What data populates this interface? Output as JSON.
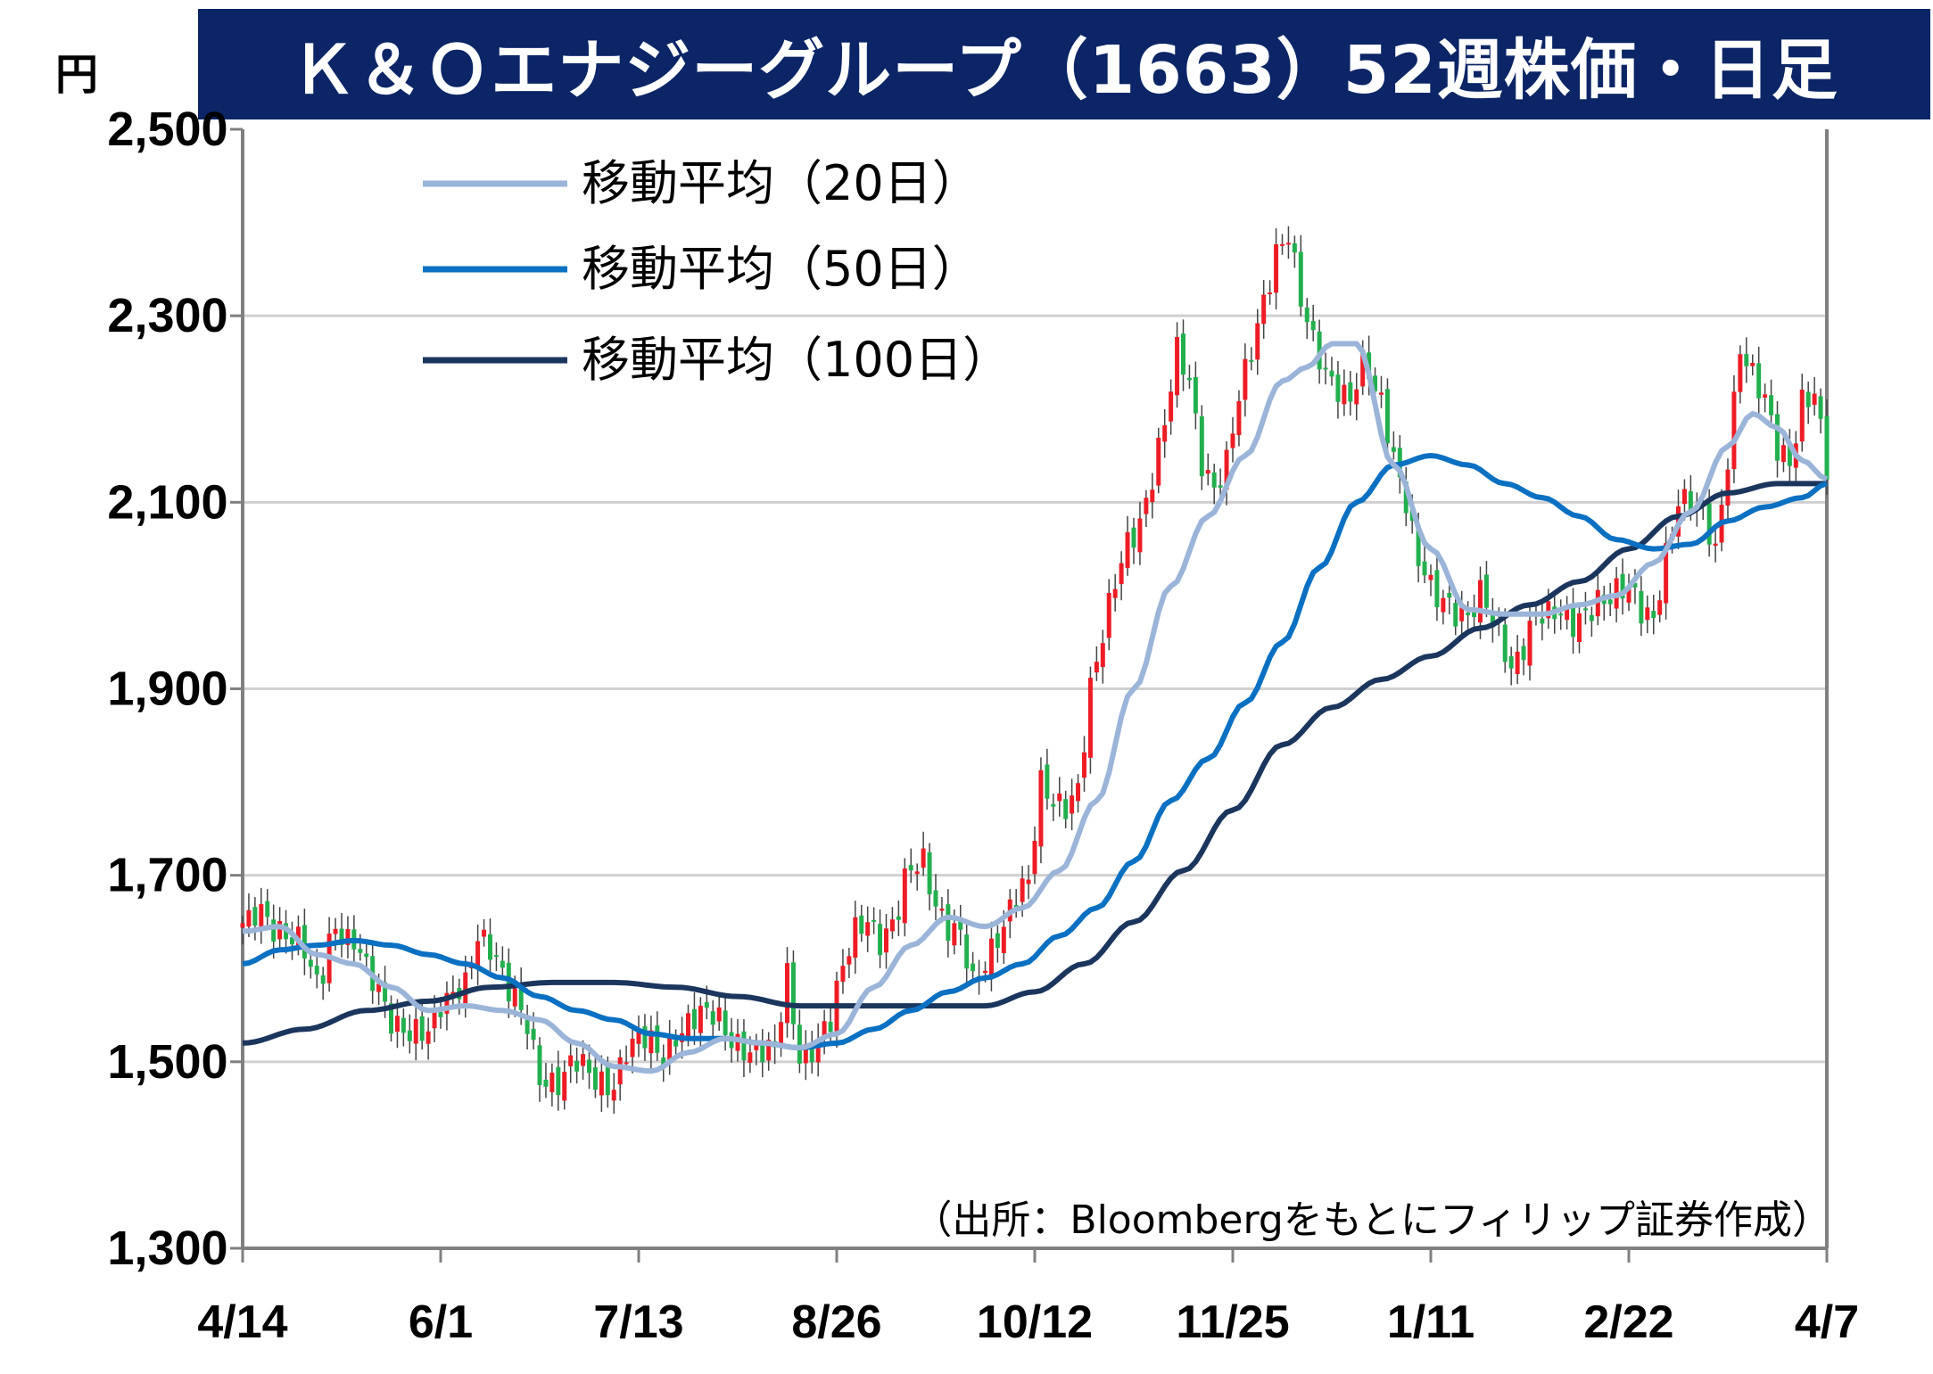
{
  "title": "Ｋ＆Ｏエナジーグループ（1663）52週株価・日足",
  "source_note": "（出所：Bloombergをもとにフィリップ証券作成）",
  "colors": {
    "title_bg": "#0b2566",
    "up": "#ee1c25",
    "down": "#22b04e",
    "ma20": "#9bb5d9",
    "ma50": "#0a70c2",
    "ma100": "#1b365d",
    "grid": "#d0d0d0",
    "axis": "#808080"
  },
  "chart_data": {
    "type": "candlestick",
    "y_unit": "円",
    "ylim": [
      1300,
      2500
    ],
    "yticks": [
      1300,
      1500,
      1700,
      1900,
      2100,
      2300,
      2500
    ],
    "ytick_labels": [
      "1,300",
      "1,500",
      "1,700",
      "1,900",
      "2,100",
      "2,300",
      "2,500"
    ],
    "grid": true,
    "legend_position": "top-left",
    "x_ticks": [
      {
        "label": "4/14",
        "index": 0
      },
      {
        "label": "6/1",
        "index": 32
      },
      {
        "label": "7/13",
        "index": 64
      },
      {
        "label": "8/26",
        "index": 96
      },
      {
        "label": "10/12",
        "index": 128
      },
      {
        "label": "11/25",
        "index": 160
      },
      {
        "label": "1/11",
        "index": 192
      },
      {
        "label": "2/22",
        "index": 224
      },
      {
        "label": "4/7",
        "index": 256
      }
    ],
    "n_days": 257,
    "closes_anchor": [
      [
        0,
        1640
      ],
      [
        3,
        1665
      ],
      [
        6,
        1645
      ],
      [
        9,
        1625
      ],
      [
        12,
        1580
      ],
      [
        15,
        1650
      ],
      [
        18,
        1630
      ],
      [
        21,
        1580
      ],
      [
        24,
        1545
      ],
      [
        27,
        1540
      ],
      [
        30,
        1530
      ],
      [
        33,
        1560
      ],
      [
        36,
        1590
      ],
      [
        38,
        1645
      ],
      [
        40,
        1620
      ],
      [
        43,
        1570
      ],
      [
        46,
        1545
      ],
      [
        48,
        1490
      ],
      [
        51,
        1475
      ],
      [
        54,
        1495
      ],
      [
        57,
        1485
      ],
      [
        60,
        1480
      ],
      [
        62,
        1510
      ],
      [
        65,
        1520
      ],
      [
        68,
        1510
      ],
      [
        70,
        1535
      ],
      [
        73,
        1545
      ],
      [
        76,
        1545
      ],
      [
        80,
        1525
      ],
      [
        83,
        1510
      ],
      [
        86,
        1505
      ],
      [
        88,
        1590
      ],
      [
        90,
        1510
      ],
      [
        92,
        1520
      ],
      [
        95,
        1540
      ],
      [
        97,
        1595
      ],
      [
        99,
        1640
      ],
      [
        101,
        1660
      ],
      [
        103,
        1635
      ],
      [
        105,
        1645
      ],
      [
        108,
        1700
      ],
      [
        110,
        1715
      ],
      [
        112,
        1675
      ],
      [
        114,
        1650
      ],
      [
        116,
        1635
      ],
      [
        118,
        1575
      ],
      [
        120,
        1600
      ],
      [
        122,
        1640
      ],
      [
        125,
        1685
      ],
      [
        127,
        1690
      ],
      [
        129,
        1790
      ],
      [
        131,
        1775
      ],
      [
        133,
        1780
      ],
      [
        135,
        1800
      ],
      [
        137,
        1900
      ],
      [
        139,
        1950
      ],
      [
        141,
        2010
      ],
      [
        143,
        2060
      ],
      [
        145,
        2085
      ],
      [
        147,
        2130
      ],
      [
        149,
        2180
      ],
      [
        151,
        2255
      ],
      [
        153,
        2230
      ],
      [
        155,
        2150
      ],
      [
        157,
        2120
      ],
      [
        159,
        2140
      ],
      [
        161,
        2205
      ],
      [
        163,
        2260
      ],
      [
        165,
        2320
      ],
      [
        167,
        2375
      ],
      [
        169,
        2390
      ],
      [
        171,
        2310
      ],
      [
        173,
        2265
      ],
      [
        175,
        2240
      ],
      [
        177,
        2230
      ],
      [
        179,
        2215
      ],
      [
        181,
        2245
      ],
      [
        184,
        2200
      ],
      [
        186,
        2150
      ],
      [
        188,
        2110
      ],
      [
        190,
        2040
      ],
      [
        193,
        1990
      ],
      [
        196,
        1980
      ],
      [
        198,
        1985
      ],
      [
        200,
        2010
      ],
      [
        203,
        1955
      ],
      [
        205,
        1910
      ],
      [
        207,
        1945
      ],
      [
        209,
        1990
      ],
      [
        212,
        1985
      ],
      [
        215,
        1960
      ],
      [
        217,
        1975
      ],
      [
        219,
        2000
      ],
      [
        222,
        2010
      ],
      [
        224,
        2005
      ],
      [
        226,
        1975
      ],
      [
        228,
        1970
      ],
      [
        230,
        2050
      ],
      [
        232,
        2110
      ],
      [
        234,
        2100
      ],
      [
        236,
        2080
      ],
      [
        238,
        2040
      ],
      [
        240,
        2150
      ],
      [
        242,
        2275
      ],
      [
        244,
        2240
      ],
      [
        246,
        2205
      ],
      [
        248,
        2150
      ],
      [
        250,
        2140
      ],
      [
        252,
        2215
      ],
      [
        254,
        2225
      ],
      [
        256,
        2135
      ]
    ],
    "ma20_anchor": [
      [
        0,
        1640
      ],
      [
        6,
        1645
      ],
      [
        12,
        1615
      ],
      [
        18,
        1605
      ],
      [
        24,
        1580
      ],
      [
        30,
        1555
      ],
      [
        36,
        1560
      ],
      [
        42,
        1555
      ],
      [
        48,
        1545
      ],
      [
        54,
        1520
      ],
      [
        60,
        1495
      ],
      [
        66,
        1490
      ],
      [
        72,
        1510
      ],
      [
        78,
        1525
      ],
      [
        84,
        1520
      ],
      [
        90,
        1515
      ],
      [
        96,
        1530
      ],
      [
        102,
        1580
      ],
      [
        108,
        1625
      ],
      [
        114,
        1655
      ],
      [
        120,
        1645
      ],
      [
        126,
        1665
      ],
      [
        132,
        1705
      ],
      [
        138,
        1780
      ],
      [
        144,
        1900
      ],
      [
        150,
        2010
      ],
      [
        156,
        2085
      ],
      [
        162,
        2150
      ],
      [
        168,
        2230
      ],
      [
        172,
        2245
      ],
      [
        176,
        2270
      ],
      [
        180,
        2270
      ],
      [
        186,
        2140
      ],
      [
        192,
        2050
      ],
      [
        198,
        1985
      ],
      [
        204,
        1980
      ],
      [
        210,
        1980
      ],
      [
        216,
        1990
      ],
      [
        222,
        2000
      ],
      [
        228,
        2035
      ],
      [
        234,
        2090
      ],
      [
        240,
        2160
      ],
      [
        244,
        2195
      ],
      [
        248,
        2180
      ],
      [
        252,
        2145
      ],
      [
        256,
        2125
      ]
    ],
    "ma50_anchor": [
      [
        0,
        1605
      ],
      [
        6,
        1620
      ],
      [
        12,
        1625
      ],
      [
        18,
        1630
      ],
      [
        24,
        1625
      ],
      [
        30,
        1615
      ],
      [
        36,
        1605
      ],
      [
        42,
        1590
      ],
      [
        48,
        1570
      ],
      [
        54,
        1555
      ],
      [
        60,
        1545
      ],
      [
        66,
        1530
      ],
      [
        72,
        1525
      ],
      [
        78,
        1525
      ],
      [
        84,
        1520
      ],
      [
        90,
        1515
      ],
      [
        96,
        1520
      ],
      [
        102,
        1535
      ],
      [
        108,
        1555
      ],
      [
        114,
        1575
      ],
      [
        120,
        1590
      ],
      [
        126,
        1605
      ],
      [
        132,
        1635
      ],
      [
        138,
        1665
      ],
      [
        144,
        1715
      ],
      [
        150,
        1780
      ],
      [
        156,
        1825
      ],
      [
        162,
        1885
      ],
      [
        168,
        1950
      ],
      [
        174,
        2030
      ],
      [
        180,
        2100
      ],
      [
        186,
        2140
      ],
      [
        192,
        2150
      ],
      [
        198,
        2140
      ],
      [
        204,
        2120
      ],
      [
        210,
        2105
      ],
      [
        216,
        2085
      ],
      [
        222,
        2060
      ],
      [
        228,
        2050
      ],
      [
        234,
        2055
      ],
      [
        240,
        2080
      ],
      [
        246,
        2095
      ],
      [
        252,
        2105
      ],
      [
        256,
        2120
      ]
    ],
    "ma100_anchor": [
      [
        0,
        1520
      ],
      [
        10,
        1535
      ],
      [
        20,
        1555
      ],
      [
        30,
        1565
      ],
      [
        40,
        1580
      ],
      [
        50,
        1585
      ],
      [
        60,
        1585
      ],
      [
        70,
        1580
      ],
      [
        80,
        1570
      ],
      [
        90,
        1560
      ],
      [
        100,
        1560
      ],
      [
        110,
        1560
      ],
      [
        120,
        1560
      ],
      [
        128,
        1575
      ],
      [
        136,
        1605
      ],
      [
        144,
        1650
      ],
      [
        152,
        1705
      ],
      [
        160,
        1770
      ],
      [
        168,
        1840
      ],
      [
        176,
        1880
      ],
      [
        184,
        1910
      ],
      [
        192,
        1935
      ],
      [
        200,
        1965
      ],
      [
        208,
        1990
      ],
      [
        216,
        2015
      ],
      [
        224,
        2050
      ],
      [
        232,
        2085
      ],
      [
        240,
        2110
      ],
      [
        248,
        2120
      ],
      [
        256,
        2120
      ]
    ]
  },
  "legend": [
    {
      "label": "移動平均（20日）",
      "color_key": "ma20"
    },
    {
      "label": "移動平均（50日）",
      "color_key": "ma50"
    },
    {
      "label": "移動平均（100日）",
      "color_key": "ma100"
    }
  ]
}
